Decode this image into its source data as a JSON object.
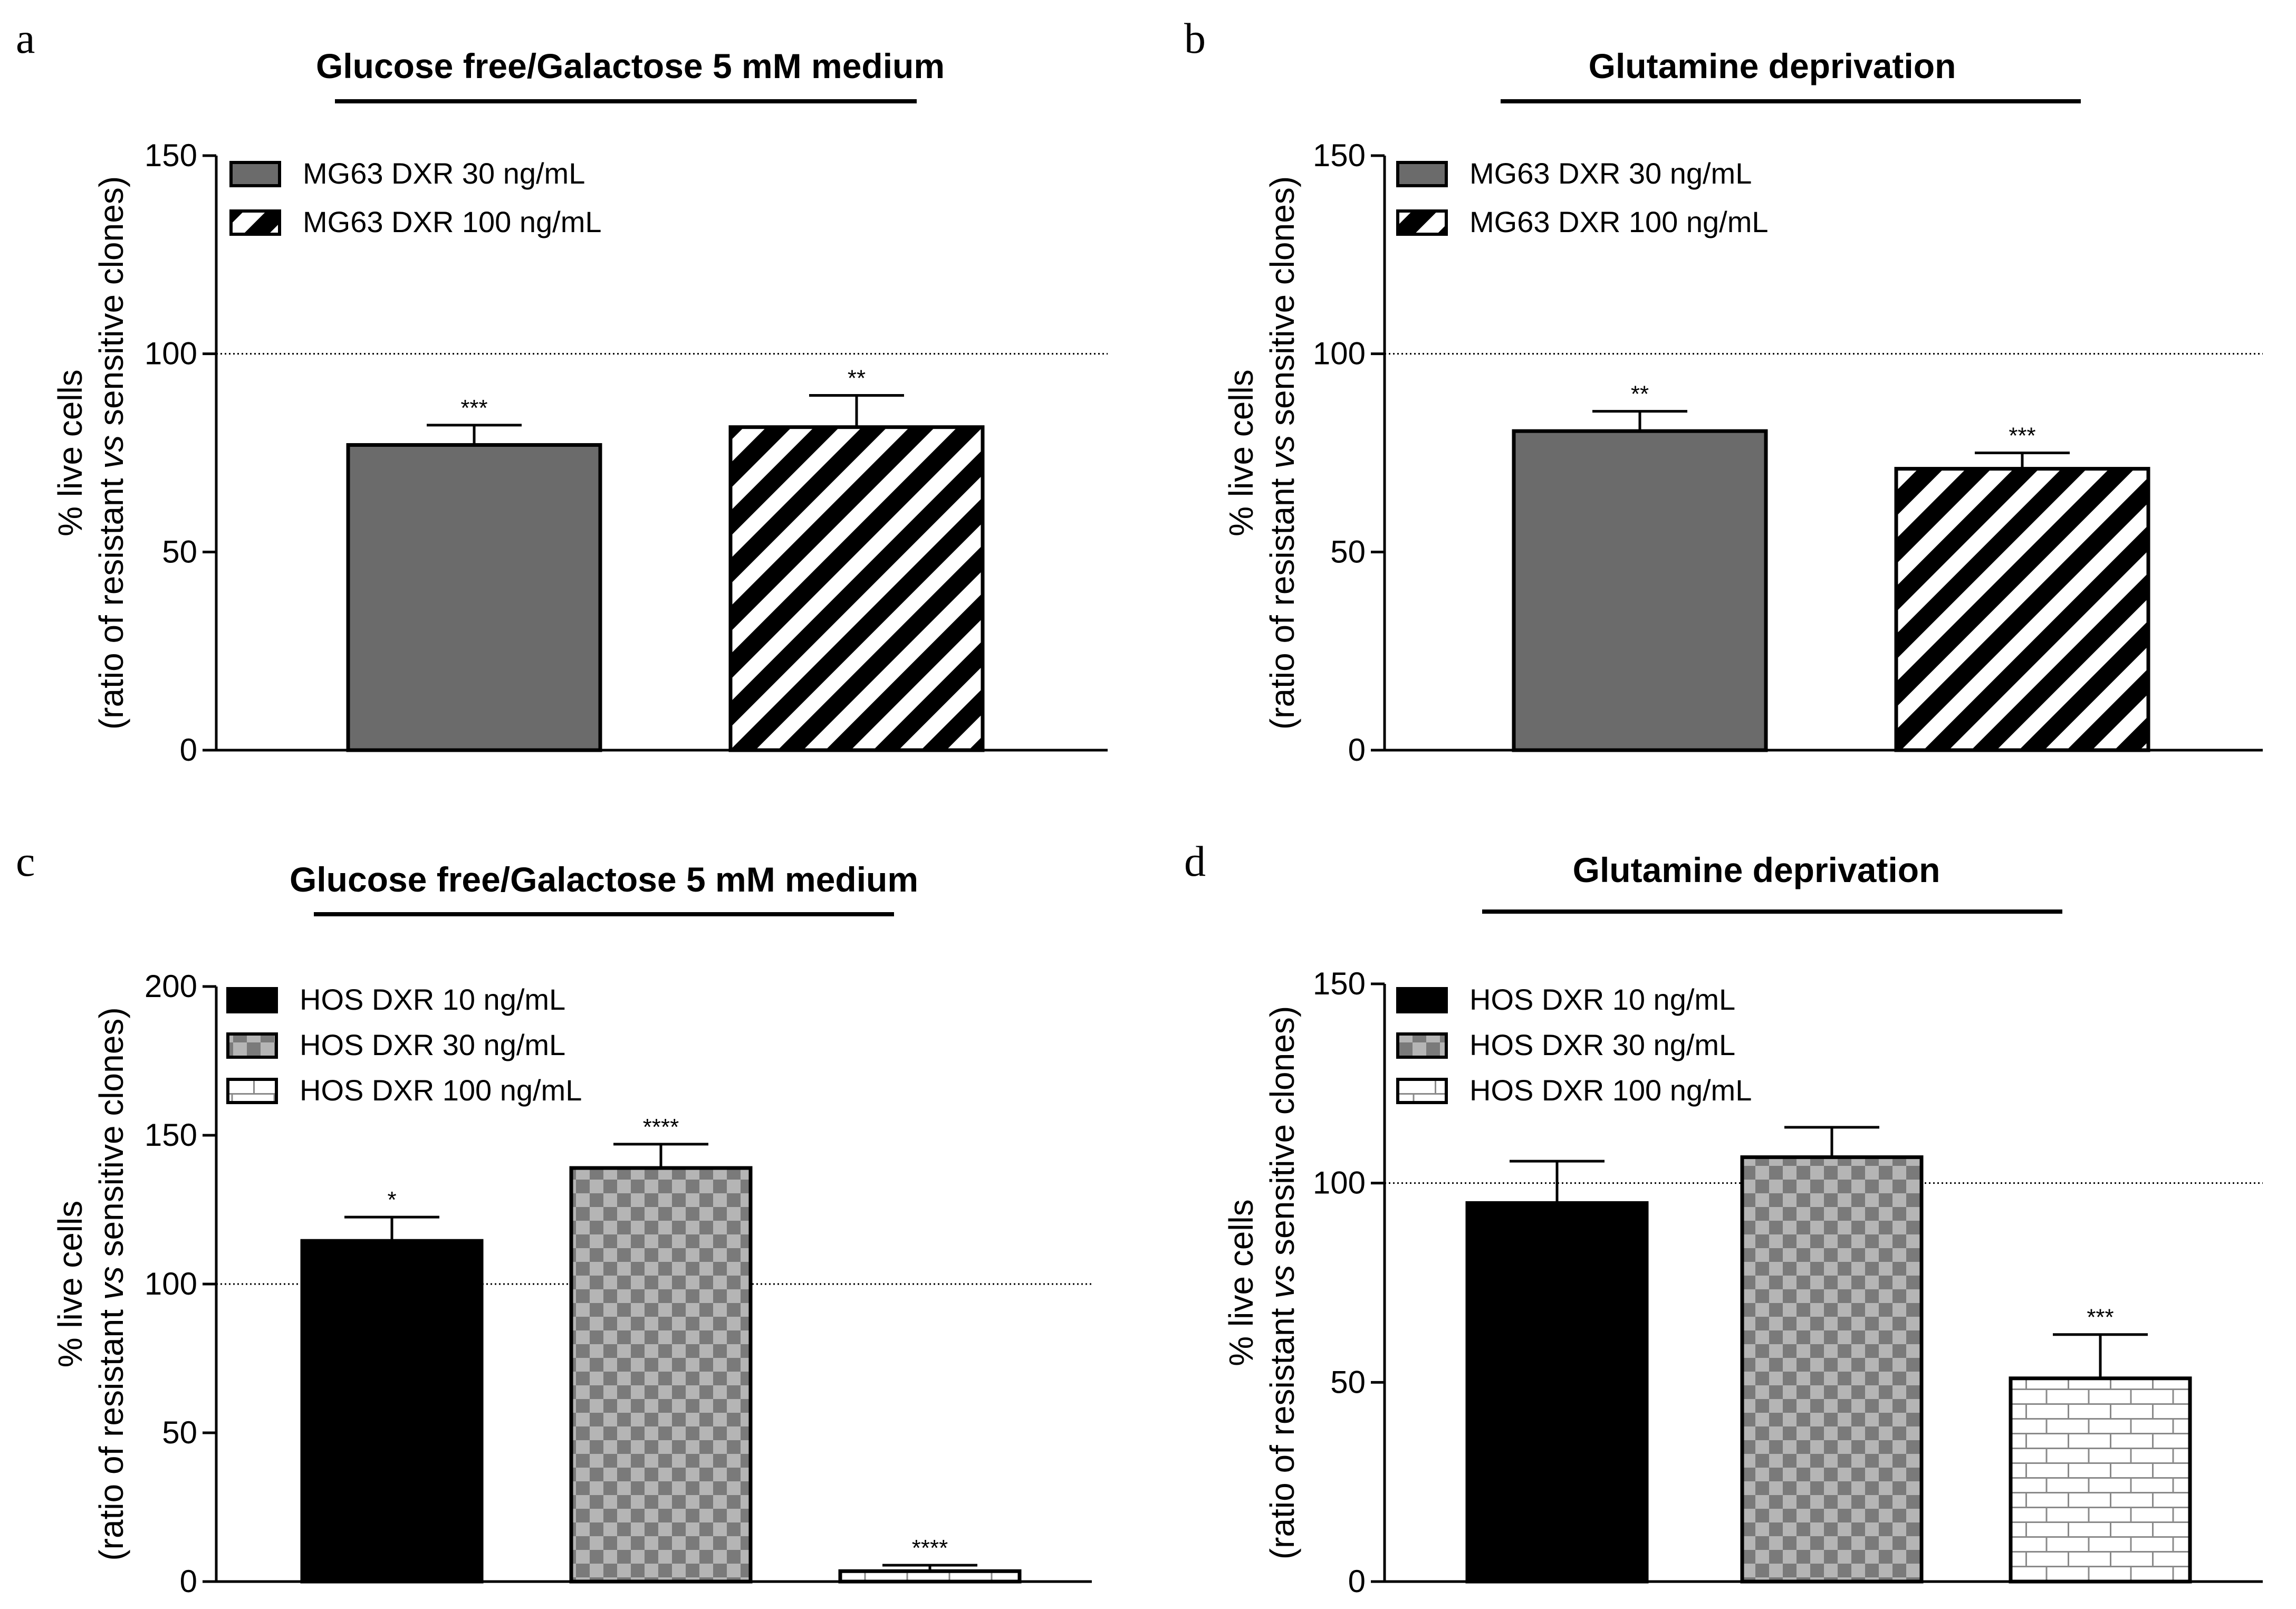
{
  "figure": {
    "colors": {
      "solid_black": "#000000",
      "dark_gray": "#6b6b6b",
      "check_gray": "#8a8a8a",
      "light_gray": "#b5b5b5",
      "white": "#ffffff"
    }
  },
  "chart_data": [
    {
      "type": "bar",
      "panel": "a",
      "title": "Glucose free/Galactose 5 mM medium",
      "ylabel_line1": "% live cells",
      "ylabel_line2_prefix": "(ratio of resistant ",
      "ylabel_line2_italic": "vs",
      "ylabel_line2_suffix": " sensitive clones)",
      "ylim": [
        0,
        150
      ],
      "yticks": [
        0,
        50,
        100,
        150
      ],
      "reference_line": 100,
      "series": [
        {
          "name": "MG63 DXR 30 ng/mL",
          "pattern": "solid-gray",
          "value": 77,
          "error": 5,
          "significance": "***"
        },
        {
          "name": "MG63 DXR 100 ng/mL",
          "pattern": "diagonal-stripes",
          "value": 81.5,
          "error": 8,
          "significance": "**"
        }
      ]
    },
    {
      "type": "bar",
      "panel": "b",
      "title": "Glutamine deprivation",
      "ylabel_line1": "% live cells",
      "ylabel_line2_prefix": "(ratio of resistant ",
      "ylabel_line2_italic": "vs",
      "ylabel_line2_suffix": " sensitive clones)",
      "ylim": [
        0,
        150
      ],
      "yticks": [
        0,
        50,
        100,
        150
      ],
      "reference_line": 100,
      "series": [
        {
          "name": "MG63 DXR 30 ng/mL",
          "pattern": "solid-gray",
          "value": 80.5,
          "error": 5,
          "significance": "**"
        },
        {
          "name": "MG63 DXR 100 ng/mL",
          "pattern": "diagonal-stripes",
          "value": 71,
          "error": 4,
          "significance": "***"
        }
      ]
    },
    {
      "type": "bar",
      "panel": "c",
      "title": "Glucose free/Galactose 5 mM medium",
      "ylabel_line1": "% live cells",
      "ylabel_line2_prefix": "(ratio of resistant ",
      "ylabel_line2_italic": "vs",
      "ylabel_line2_suffix": " sensitive clones)",
      "ylim": [
        0,
        200
      ],
      "yticks": [
        0,
        50,
        100,
        150,
        200
      ],
      "reference_line": 100,
      "series": [
        {
          "name": "HOS DXR 10 ng/mL",
          "pattern": "solid-black",
          "value": 114.5,
          "error": 8,
          "significance": "*"
        },
        {
          "name": "HOS DXR 30 ng/mL",
          "pattern": "checkerboard",
          "value": 139,
          "error": 8,
          "significance": "****"
        },
        {
          "name": "HOS DXR 100 ng/mL",
          "pattern": "brick",
          "value": 3.5,
          "error": 2,
          "significance": "****"
        }
      ]
    },
    {
      "type": "bar",
      "panel": "d",
      "title": "Glutamine deprivation",
      "ylabel_line1": "% live cells",
      "ylabel_line2_prefix": "(ratio of resistant ",
      "ylabel_line2_italic": "vs",
      "ylabel_line2_suffix": " sensitive clones)",
      "ylim": [
        0,
        150
      ],
      "yticks": [
        0,
        50,
        100,
        150
      ],
      "reference_line": 100,
      "series": [
        {
          "name": "HOS DXR 10 ng/mL",
          "pattern": "solid-black",
          "value": 95,
          "error": 10.5,
          "significance": ""
        },
        {
          "name": "HOS DXR 30 ng/mL",
          "pattern": "checkerboard",
          "value": 106.5,
          "error": 7.5,
          "significance": ""
        },
        {
          "name": "HOS DXR 100 ng/mL",
          "pattern": "brick",
          "value": 51,
          "error": 11,
          "significance": "***"
        }
      ]
    }
  ]
}
